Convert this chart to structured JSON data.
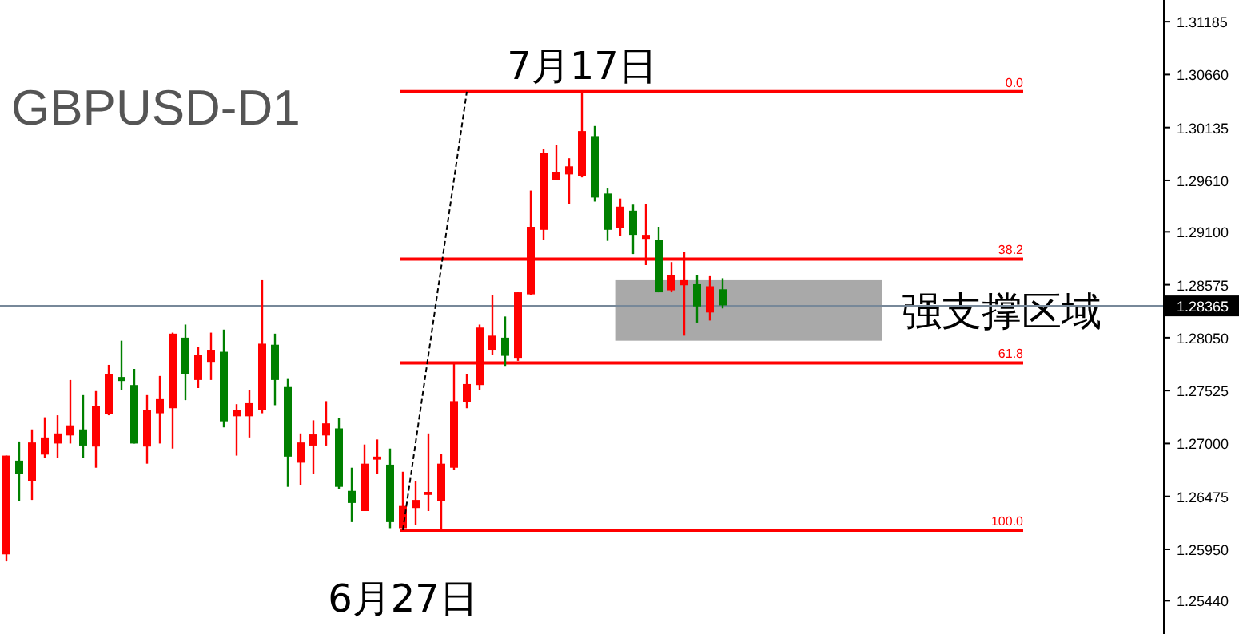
{
  "chart_data": {
    "type": "candlestick",
    "title": "GBPUSD-D1",
    "tick_labels": "y",
    "grid": false,
    "categories": [
      null,
      null,
      null,
      null,
      null,
      null,
      null,
      null,
      null,
      null,
      null,
      null,
      null,
      null,
      null,
      null,
      null,
      null,
      null,
      null,
      null,
      null,
      null,
      null,
      null,
      null,
      null,
      null,
      null,
      null,
      null,
      null,
      null,
      null,
      null,
      null,
      null,
      null,
      null,
      null,
      null,
      null,
      null,
      null,
      null,
      null,
      null,
      null,
      null,
      null,
      null,
      null,
      null,
      null,
      null,
      null,
      null,
      null,
      null,
      null,
      null,
      null,
      null,
      null,
      null,
      null,
      null,
      null,
      null,
      null,
      null,
      null,
      null,
      null,
      null,
      null,
      null,
      null,
      null,
      null,
      null,
      null,
      null,
      null,
      null,
      null,
      null,
      null,
      null,
      null,
      null
    ],
    "ohlc": [
      [
        1.259,
        1.2688,
        1.2583,
        1.2688
      ],
      [
        1.2683,
        1.2702,
        1.2643,
        1.267
      ],
      [
        1.2663,
        1.2714,
        1.2644,
        1.2701
      ],
      [
        1.2689,
        1.2726,
        1.2686,
        1.2706
      ],
      [
        1.27,
        1.2728,
        1.2686,
        1.271
      ],
      [
        1.2708,
        1.2763,
        1.27,
        1.2718
      ],
      [
        1.2714,
        1.2748,
        1.2686,
        1.2698
      ],
      [
        1.2697,
        1.2752,
        1.2676,
        1.2737
      ],
      [
        1.2729,
        1.2778,
        1.2728,
        1.2769
      ],
      [
        1.2766,
        1.2802,
        1.2753,
        1.2762
      ],
      [
        1.2758,
        1.2774,
        1.27,
        1.27
      ],
      [
        1.2697,
        1.2748,
        1.268,
        1.2733
      ],
      [
        1.273,
        1.2767,
        1.27,
        1.2744
      ],
      [
        1.2735,
        1.281,
        1.2695,
        1.2809
      ],
      [
        1.2805,
        1.2818,
        1.2743,
        1.2769
      ],
      [
        1.2763,
        1.2796,
        1.2755,
        1.2788
      ],
      [
        1.2781,
        1.281,
        1.2763,
        1.2793
      ],
      [
        1.2791,
        1.2813,
        1.2716,
        1.2722
      ],
      [
        1.2727,
        1.2739,
        1.2688,
        1.2733
      ],
      [
        1.2727,
        1.2753,
        1.2706,
        1.274
      ],
      [
        1.2733,
        1.2862,
        1.273,
        1.2799
      ],
      [
        1.2798,
        1.2809,
        1.2738,
        1.2763
      ],
      [
        1.2756,
        1.2764,
        1.2657,
        1.2687
      ],
      [
        1.2681,
        1.271,
        1.2659,
        1.2701
      ],
      [
        1.2698,
        1.2723,
        1.267,
        1.2709
      ],
      [
        1.2708,
        1.2742,
        1.2698,
        1.272
      ],
      [
        1.2715,
        1.2725,
        1.2655,
        1.2657
      ],
      [
        1.2653,
        1.2676,
        1.2622,
        1.2641
      ],
      [
        1.2633,
        1.2699,
        1.2633,
        1.268
      ],
      [
        1.2684,
        1.2704,
        1.267,
        1.2687
      ],
      [
        1.2679,
        1.2695,
        1.2616,
        1.2622
      ],
      [
        1.2616,
        1.2672,
        1.2614,
        1.2638
      ],
      [
        1.2636,
        1.2663,
        1.2619,
        1.2644
      ],
      [
        1.2649,
        1.271,
        1.2633,
        1.2652
      ],
      [
        1.2643,
        1.269,
        1.2614,
        1.268
      ],
      [
        1.2676,
        1.2779,
        1.2674,
        1.2742
      ],
      [
        1.2741,
        1.2769,
        1.2735,
        1.2759
      ],
      [
        1.2758,
        1.2818,
        1.2753,
        1.2815
      ],
      [
        1.2793,
        1.2847,
        1.2788,
        1.2807
      ],
      [
        1.2805,
        1.2826,
        1.2777,
        1.2787
      ],
      [
        1.2785,
        1.285,
        1.2782,
        1.285
      ],
      [
        1.2848,
        1.2951,
        1.2847,
        1.2915
      ],
      [
        1.2912,
        1.2992,
        1.2902,
        1.2988
      ],
      [
        1.2961,
        1.2996,
        1.2961,
        1.2969
      ],
      [
        1.2967,
        1.2983,
        1.2938,
        1.2975
      ],
      [
        1.2965,
        1.3049,
        1.2964,
        1.301
      ],
      [
        1.3005,
        1.3015,
        1.294,
        1.2944
      ],
      [
        1.2948,
        1.2953,
        1.2901,
        1.2912
      ],
      [
        1.2914,
        1.2943,
        1.2906,
        1.2935
      ],
      [
        1.2931,
        1.2937,
        1.2888,
        1.2907
      ],
      [
        1.2903,
        1.2938,
        1.2877,
        1.2907
      ],
      [
        1.2902,
        1.2915,
        1.285,
        1.285
      ],
      [
        1.2852,
        1.288,
        1.285,
        1.2867
      ],
      [
        1.2857,
        1.289,
        1.2807,
        1.2862
      ],
      [
        1.2858,
        1.2867,
        1.282,
        1.2836
      ],
      [
        1.283,
        1.2866,
        1.2822,
        1.2856
      ],
      [
        1.2853,
        1.2864,
        1.2834,
        1.2837
      ],
      null,
      null,
      null,
      null,
      null,
      null,
      null,
      null,
      null,
      null,
      null,
      null,
      null,
      null,
      null,
      null,
      null,
      null,
      null,
      null,
      null,
      null,
      null,
      null,
      null,
      null,
      null,
      null,
      null,
      null,
      null,
      null,
      null,
      null
    ],
    "colors": [
      "#ff0000",
      "#008000",
      "#ff0000",
      "#ff0000",
      "#ff0000",
      "#ff0000",
      "#008000",
      "#ff0000",
      "#ff0000",
      "#008000",
      "#008000",
      "#ff0000",
      "#ff0000",
      "#ff0000",
      "#008000",
      "#ff0000",
      "#ff0000",
      "#008000",
      "#ff0000",
      "#ff0000",
      "#ff0000",
      "#008000",
      "#008000",
      "#ff0000",
      "#ff0000",
      "#ff0000",
      "#008000",
      "#008000",
      "#ff0000",
      "#ff0000",
      "#008000",
      "#ff0000",
      "#ff0000",
      "#ff0000",
      "#ff0000",
      "#ff0000",
      "#ff0000",
      "#ff0000",
      "#ff0000",
      "#008000",
      "#ff0000",
      "#ff0000",
      "#ff0000",
      "#ff0000",
      "#ff0000",
      "#ff0000",
      "#008000",
      "#008000",
      "#ff0000",
      "#008000",
      "#ff0000",
      "#008000",
      "#ff0000",
      "#ff0000",
      "#008000",
      "#ff0000",
      "#008000",
      null,
      null,
      null,
      null,
      null,
      null,
      null,
      null,
      null,
      null,
      null,
      null,
      null,
      null,
      null,
      null,
      null,
      null,
      null,
      null,
      null,
      null,
      null,
      null,
      null,
      null,
      null,
      null,
      null,
      null,
      null,
      null,
      null,
      null
    ],
    "series": [
      {
        "type": "line",
        "color": "#000000",
        "line_style": "dashed",
        "values": [
          null,
          null,
          null,
          null,
          null,
          null,
          null,
          null,
          null,
          null,
          null,
          null,
          null,
          null,
          null,
          null,
          null,
          null,
          null,
          null,
          null,
          null,
          null,
          null,
          null,
          null,
          null,
          null,
          null,
          null,
          null,
          1.2614,
          null,
          null,
          null,
          null,
          1.3049,
          null,
          null,
          null,
          null,
          null,
          null,
          null,
          null,
          null,
          null,
          null,
          null,
          null,
          null,
          null,
          null,
          null,
          null,
          null,
          null,
          null,
          null,
          null,
          null,
          null,
          null,
          null,
          null,
          null,
          null,
          null,
          null,
          null,
          null,
          null,
          null,
          null,
          null,
          null,
          null,
          null,
          null,
          null,
          null,
          null,
          null,
          null,
          null,
          null,
          null,
          null,
          null,
          null,
          null
        ]
      }
    ],
    "ylim": [
      1.2511,
      1.314
    ],
    "yticks": [
      1.31185,
      {
        "value": 1.3066,
        "label": "1.30660"
      },
      1.30135,
      {
        "value": 1.2961,
        "label": "1.29610"
      },
      {
        "value": 1.291,
        "label": "1.29100"
      },
      1.28575,
      {
        "value": 1.2805,
        "label": "1.28050"
      },
      1.27525,
      {
        "value": 1.27,
        "label": "1.27000"
      },
      1.26475,
      {
        "value": 1.2595,
        "label": "1.25950"
      },
      {
        "value": 1.2544,
        "label": "1.25440"
      }
    ],
    "ref_lines": [
      {
        "axis": "y",
        "value": 1.3049,
        "color": "#ff0000"
      },
      {
        "axis": "y",
        "value": 1.2883,
        "color": "#ff0000"
      },
      {
        "axis": "y",
        "value": 1.278,
        "color": "#ff0000"
      },
      {
        "axis": "y",
        "value": 1.2614,
        "color": "#ff0000"
      },
      {
        "axis": "y",
        "value": 1.28365,
        "label": "1.28365",
        "color": "#778899"
      }
    ],
    "bands": [
      {
        "axis": "y",
        "from": 1.2802,
        "to": 1.2862,
        "label": "强支撑区域",
        "color": "#a9a9a9"
      }
    ],
    "annotations": [
      "7月17日",
      "6月27日",
      {
        "text": "0.0",
        "y": 1.3049
      },
      {
        "text": "38.2",
        "y": 1.2883
      },
      {
        "text": "61.8",
        "y": 1.278
      },
      {
        "text": "100.0",
        "y": 1.2614
      }
    ]
  }
}
